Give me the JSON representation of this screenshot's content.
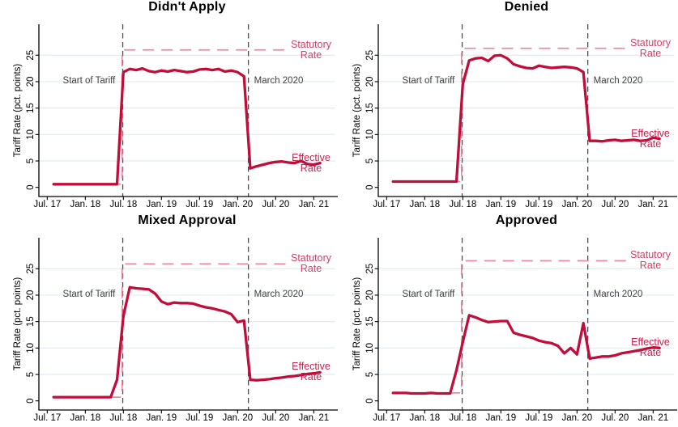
{
  "figure": {
    "y_axis_title": "Tariff Rate (pct. points)",
    "x_ticks": {
      "months": [
        0,
        6,
        12,
        18,
        24,
        30,
        36,
        42
      ],
      "labels": [
        "Jul. 17",
        "Jan. 18",
        "Jul. 18",
        "Jan. 19",
        "Jul. 19",
        "Jan. 20",
        "Jul. 20",
        "Jan. 21"
      ]
    },
    "y_ticks": [
      0,
      5,
      10,
      15,
      20,
      25
    ],
    "annotations": {
      "tariff_start": "Start of Tariff",
      "march_2020": "March 2020"
    },
    "series_labels": {
      "statutory": "Statutory Rate",
      "effective": "Effective Rate"
    },
    "events": {
      "tariff_start_month": 11.9,
      "march_2020_month": 31.7
    },
    "colors": {
      "effective_line": "#c10d3a",
      "statutory_line": "#e78aa2",
      "statutory_label": "#cf4168",
      "effective_label": "#c8224e",
      "event_line": "#4d4d4d",
      "gridline": "#e2ecee",
      "axis": "#000000",
      "annotation_text": "#414141",
      "title": "#000000"
    }
  },
  "chart_data": [
    {
      "type": "line",
      "title": "Didn't Apply",
      "xlabel": "",
      "ylabel": "Tariff Rate (pct. points)",
      "ylim": [
        0,
        31
      ],
      "grid": "horizontal",
      "x_start": "2017-08",
      "x_end": "2021-02",
      "frequency": "monthly",
      "statutory_rate": 26.0,
      "statutory_visible_from_month": 11.8,
      "statutory_visible_to_month": 38,
      "effective_rate_monthly": [
        0.6,
        0.6,
        0.6,
        0.6,
        0.6,
        0.6,
        0.6,
        0.6,
        0.6,
        0.6,
        0.6,
        21.8,
        22.4,
        22.2,
        22.5,
        22.0,
        21.8,
        22.1,
        21.9,
        22.2,
        22.0,
        21.8,
        21.9,
        22.3,
        22.4,
        22.2,
        22.4,
        21.9,
        22.1,
        21.8,
        21.0,
        3.6,
        4.0,
        4.3,
        4.6,
        4.8,
        4.9,
        4.7,
        4.6,
        5.0,
        4.4,
        4.3,
        4.6
      ]
    },
    {
      "type": "line",
      "title": "Denied",
      "xlabel": "",
      "ylabel": "Tariff Rate (pct. points)",
      "ylim": [
        0,
        31
      ],
      "grid": "horizontal",
      "x_start": "2017-08",
      "x_end": "2021-02",
      "frequency": "monthly",
      "statutory_rate": 26.3,
      "statutory_visible_from_month": 11.8,
      "statutory_visible_to_month": 38,
      "effective_rate_monthly": [
        1.1,
        1.1,
        1.1,
        1.1,
        1.1,
        1.1,
        1.1,
        1.1,
        1.1,
        1.1,
        1.1,
        19.5,
        24.0,
        24.4,
        24.5,
        23.9,
        24.9,
        25.0,
        24.4,
        23.3,
        22.9,
        22.6,
        22.5,
        23.0,
        22.8,
        22.6,
        22.7,
        22.8,
        22.7,
        22.5,
        21.8,
        8.8,
        8.8,
        8.7,
        8.9,
        9.0,
        8.8,
        8.9,
        9.0,
        8.8,
        8.9,
        9.4,
        9.2
      ]
    },
    {
      "type": "line",
      "title": "Mixed Approval",
      "xlabel": "",
      "ylabel": "Tariff Rate (pct. points)",
      "ylim": [
        0,
        31
      ],
      "grid": "horizontal",
      "x_start": "2017-08",
      "x_end": "2021-02",
      "frequency": "monthly",
      "statutory_rate": 25.9,
      "statutory_visible_from_month": 11.8,
      "statutory_visible_to_month": 38,
      "effective_rate_monthly": [
        0.7,
        0.7,
        0.7,
        0.7,
        0.7,
        0.7,
        0.7,
        0.7,
        0.7,
        0.7,
        4.0,
        16.0,
        21.5,
        21.3,
        21.2,
        21.1,
        20.3,
        18.8,
        18.3,
        18.6,
        18.5,
        18.5,
        18.4,
        18.0,
        17.7,
        17.5,
        17.2,
        16.9,
        16.4,
        14.9,
        15.2,
        4.0,
        3.9,
        4.0,
        4.1,
        4.3,
        4.4,
        4.6,
        4.7,
        4.9,
        5.1,
        5.2,
        5.4
      ]
    },
    {
      "type": "line",
      "title": "Approved",
      "xlabel": "",
      "ylabel": "Tariff Rate (pct. points)",
      "ylim": [
        0,
        31
      ],
      "grid": "horizontal",
      "x_start": "2017-08",
      "x_end": "2021-02",
      "frequency": "monthly",
      "statutory_rate": 26.5,
      "statutory_visible_from_month": 11.8,
      "statutory_visible_to_month": 38,
      "effective_rate_monthly": [
        1.5,
        1.5,
        1.5,
        1.4,
        1.4,
        1.4,
        1.5,
        1.4,
        1.4,
        1.4,
        5.8,
        11.1,
        16.2,
        15.8,
        15.3,
        14.9,
        15.0,
        15.1,
        15.1,
        12.9,
        12.5,
        12.2,
        11.9,
        11.4,
        11.1,
        10.9,
        10.4,
        9.0,
        10.0,
        8.8,
        14.7,
        8.0,
        8.2,
        8.4,
        8.4,
        8.6,
        9.0,
        9.2,
        9.4,
        9.6,
        9.9,
        10.1,
        10.0
      ]
    }
  ]
}
